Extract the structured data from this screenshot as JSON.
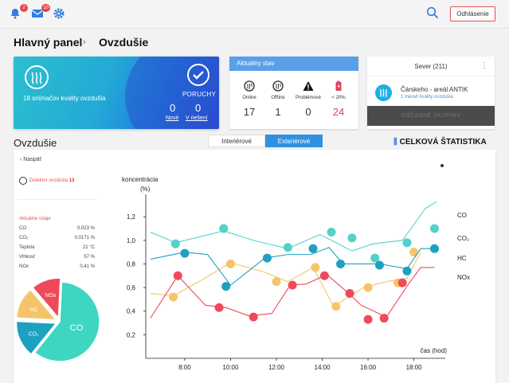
{
  "topbar": {
    "notif_badge": "2",
    "mail_badge": "10",
    "logout_label": "Odhlásenie"
  },
  "breadcrumb": {
    "root": "Hlavný panel",
    "sep": "›",
    "current": "Ovzdušie"
  },
  "hero": {
    "text": "18 snímačov kvality ovzdušia",
    "status_title": "PORUCHY",
    "new_count": "0",
    "solving_count": "0",
    "new_label": "Nové",
    "solving_label": "V riešení"
  },
  "status": {
    "title": "Aktuálny stav",
    "cols": [
      {
        "label": "Online",
        "value": "17",
        "color": "#333333"
      },
      {
        "label": "Offline",
        "value": "1",
        "color": "#333333"
      },
      {
        "label": "Problémové",
        "value": "0",
        "color": "#333333"
      },
      {
        "label": "< 20%",
        "value": "24",
        "color": "#e0405a"
      }
    ]
  },
  "north": {
    "title": "Sever (211)",
    "kebab": "⋮",
    "item_title": "Čárskeho - areál ANTIK",
    "item_sub": "1 meraň kvality ovzdušia",
    "button": "DOČASNÉ SKUPINY"
  },
  "section": {
    "title": "Ovzdušie",
    "tabs": [
      "Interiérové",
      "Exteriérové"
    ],
    "active_tab": 1,
    "stats_icon": "bar-chart-icon",
    "stats_label": "CELKOVÁ ŠTATISTIKA"
  },
  "panel": {
    "back": "Naspäť",
    "detector_label": "Detektor ovzdušia",
    "detector_num": "13",
    "current_title": "Aktuálne údaje",
    "readings": [
      {
        "name": "CO",
        "value": "0,023 %"
      },
      {
        "name": "CO₂",
        "value": "0,0171 %"
      },
      {
        "name": "Teplota",
        "value": "21 °C"
      },
      {
        "name": "Vlhkosť",
        "value": "57 %"
      },
      {
        "name": "NOx",
        "value": "0,41 %"
      }
    ],
    "pie": [
      {
        "label": "CO",
        "share": 0.6,
        "color": "#3ed6c0"
      },
      {
        "label": "CO₂",
        "share": 0.15,
        "color": "#1ea0c0"
      },
      {
        "label": "HC",
        "share": 0.13,
        "color": "#f5c46a"
      },
      {
        "label": "NOx",
        "share": 0.12,
        "color": "#ee4a5a"
      }
    ]
  },
  "colors": {
    "accent": "#2f91e0",
    "danger": "#e05555",
    "hero_start": "#2bbfcf",
    "hero_end": "#2d4fd6"
  },
  "chart_data": {
    "type": "line",
    "ylabel": "koncentrácia (%)",
    "xlabel": "čas (hod)",
    "x": [
      6.5,
      7.5,
      8.5,
      9.5,
      10.5,
      11.5,
      12.5,
      13.5,
      14.5,
      15.5,
      16.5,
      17.5,
      18.25,
      18.75
    ],
    "xticks": [
      "8:00",
      "10:00",
      "12:00",
      "14:00",
      "16:00",
      "18:00"
    ],
    "xtick_values": [
      8,
      10,
      12,
      14,
      16,
      18
    ],
    "yticks": [
      "0,2",
      "0,4",
      "0,6",
      "0,8",
      "1,0",
      "1,2"
    ],
    "ytick_values": [
      0.2,
      0.4,
      0.6,
      0.8,
      1.0,
      1.2
    ],
    "ylim": [
      0,
      1.35
    ],
    "xlim": [
      6.3,
      19.3
    ],
    "series": [
      {
        "name": "CO",
        "color": "#55d1c8",
        "x": [
          6.5,
          7.6,
          9.7,
          11.0,
          12.5,
          13.9,
          15.3,
          16.2,
          17.5,
          18.5,
          19.0
        ],
        "y": [
          1.07,
          0.98,
          1.08,
          1.0,
          0.93,
          1.05,
          0.91,
          0.97,
          1.0,
          1.27,
          1.33
        ],
        "markers": [
          [
            7.6,
            0.97
          ],
          [
            9.7,
            1.1
          ],
          [
            12.5,
            0.94
          ],
          [
            14.4,
            1.07
          ],
          [
            15.3,
            1.02
          ],
          [
            16.3,
            0.85
          ],
          [
            17.7,
            0.98
          ],
          [
            18.9,
            1.1
          ]
        ],
        "marker_color": "#55d1c8"
      },
      {
        "name": "CO₂",
        "color": "#f5c46a",
        "x": [
          6.5,
          7.5,
          8.8,
          10.0,
          11.5,
          12.5,
          13.6,
          14.5,
          15.8,
          16.8,
          17.7,
          18.3
        ],
        "y": [
          0.55,
          0.53,
          0.67,
          0.81,
          0.73,
          0.65,
          0.77,
          0.44,
          0.6,
          0.65,
          0.68,
          0.9
        ],
        "markers": [
          [
            7.5,
            0.52
          ],
          [
            10.0,
            0.8
          ],
          [
            12.0,
            0.65
          ],
          [
            13.7,
            0.77
          ],
          [
            14.6,
            0.44
          ],
          [
            16.0,
            0.6
          ],
          [
            17.3,
            0.64
          ],
          [
            18.0,
            0.9
          ]
        ],
        "marker_color": "#f5c46a"
      },
      {
        "name": "HC",
        "color": "#1ea0c0",
        "x": [
          6.5,
          8.0,
          9.0,
          10.0,
          11.5,
          12.5,
          13.5,
          14.3,
          14.9,
          16.5,
          17.7,
          18.3,
          18.8
        ],
        "y": [
          0.84,
          0.9,
          0.88,
          0.62,
          0.85,
          0.88,
          0.88,
          0.94,
          0.8,
          0.8,
          0.76,
          0.93,
          0.93
        ],
        "markers": [
          [
            8.0,
            0.89
          ],
          [
            9.8,
            0.61
          ],
          [
            11.6,
            0.85
          ],
          [
            13.6,
            0.93
          ],
          [
            14.8,
            0.8
          ],
          [
            16.5,
            0.79
          ],
          [
            17.7,
            0.74
          ],
          [
            18.9,
            0.93
          ]
        ],
        "marker_color": "#1ea0c0"
      },
      {
        "name": "NOx",
        "color": "#ee4a5a",
        "x": [
          6.5,
          7.7,
          8.9,
          9.8,
          10.8,
          11.8,
          12.6,
          13.3,
          14.2,
          15.1,
          15.7,
          16.8,
          17.8,
          18.3,
          18.9
        ],
        "y": [
          0.34,
          0.7,
          0.45,
          0.43,
          0.36,
          0.38,
          0.62,
          0.63,
          0.71,
          0.56,
          0.45,
          0.35,
          0.64,
          0.77,
          0.77
        ],
        "markers": [
          [
            7.7,
            0.7
          ],
          [
            9.5,
            0.43
          ],
          [
            11.0,
            0.35
          ],
          [
            12.7,
            0.62
          ],
          [
            14.1,
            0.7
          ],
          [
            15.2,
            0.55
          ],
          [
            16.0,
            0.33
          ],
          [
            16.7,
            0.34
          ],
          [
            17.5,
            0.64
          ]
        ],
        "marker_color": "#ee4a5a"
      }
    ],
    "legend": [
      "CO",
      "CO₂",
      "HC",
      "NOx"
    ],
    "legend_placement": "right"
  }
}
